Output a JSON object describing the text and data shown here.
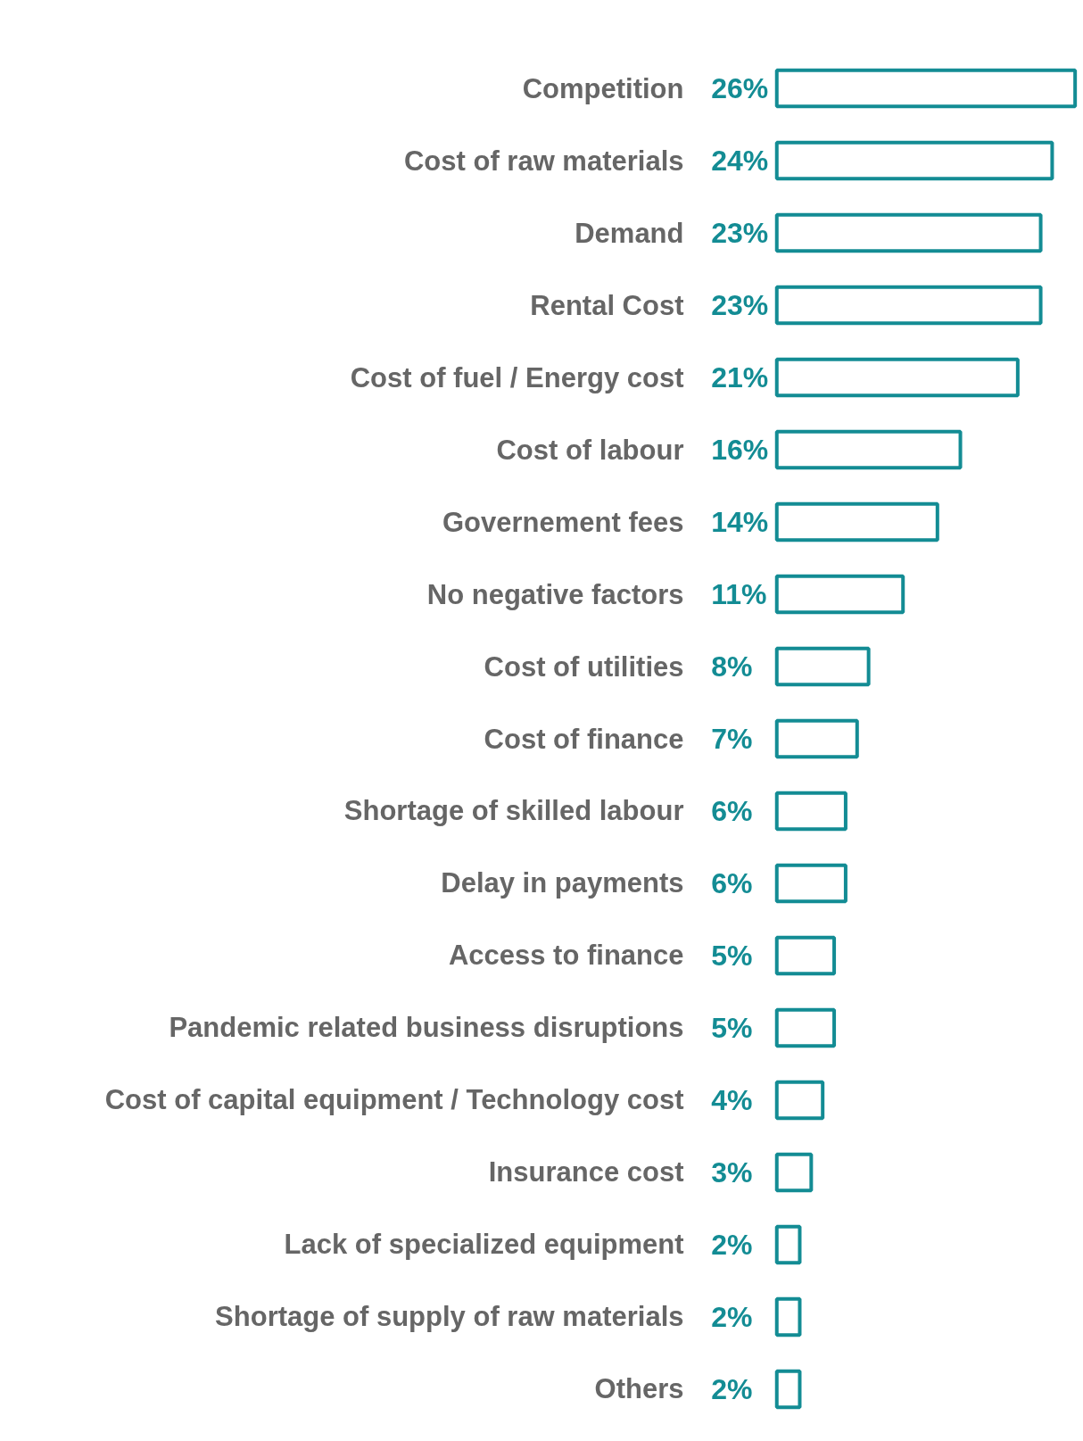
{
  "chart_data": {
    "type": "bar",
    "orientation": "horizontal",
    "categories": [
      "Competition",
      "Cost of raw materials",
      "Demand",
      "Rental Cost",
      "Cost of fuel / Energy cost",
      "Cost of labour",
      "Governement fees",
      "No negative factors",
      "Cost of utilities",
      "Cost of finance",
      "Shortage of skilled labour",
      "Delay in payments",
      "Access to finance",
      "Pandemic related business disruptions",
      "Cost of capital equipment / Technology cost",
      "Insurance cost",
      "Lack of specialized equipment",
      "Shortage of supply of raw materials",
      "Others"
    ],
    "values": [
      26,
      24,
      23,
      23,
      21,
      16,
      14,
      11,
      8,
      7,
      6,
      6,
      5,
      5,
      4,
      3,
      2,
      2,
      2
    ],
    "value_labels": [
      "26%",
      "24%",
      "23%",
      "23%",
      "21%",
      "16%",
      "14%",
      "11%",
      "8%",
      "7%",
      "6%",
      "6%",
      "5%",
      "5%",
      "4%",
      "3%",
      "2%",
      "2%",
      "2%"
    ],
    "color": "#138c94",
    "grid": false,
    "tick_labels": "y"
  }
}
